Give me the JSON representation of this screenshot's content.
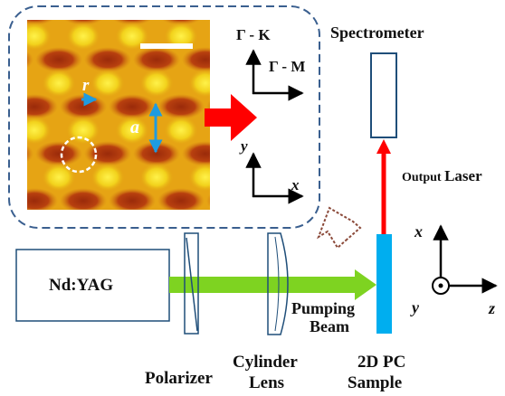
{
  "colors": {
    "dashed_border": "#3a5f8f",
    "arrow_red": "#ff0000",
    "pump_beam": "#7ed321",
    "pc_sample": "#00aeef",
    "inset_blue_arrow": "#1e9be0",
    "box_blue": "#1f4e79",
    "brown_dotted": "#8b4a3a",
    "pattern_dark": "#a8320e",
    "pattern_mid": "#e09a10",
    "pattern_bright": "#f5dc20"
  },
  "labels": {
    "spectrometer": "Spectrometer",
    "gamma_k": "Γ - K",
    "gamma_m": "Γ - M",
    "inset_y": "y",
    "inset_x": "x",
    "r": "r",
    "a": "a",
    "output_laser_1": "Output",
    "output_laser_2": "Laser",
    "nd_yag": "Nd:YAG",
    "pumping": "Pumping",
    "beam": "Beam",
    "polarizer": "Polarizer",
    "cylinder": "Cylinder",
    "lens": "Lens",
    "sample_1": "2D PC",
    "sample_2": "Sample",
    "axis_x": "x",
    "axis_y": "y",
    "axis_z": "z"
  },
  "icons": {
    "coordinate_origin": "circle-dot-icon"
  }
}
